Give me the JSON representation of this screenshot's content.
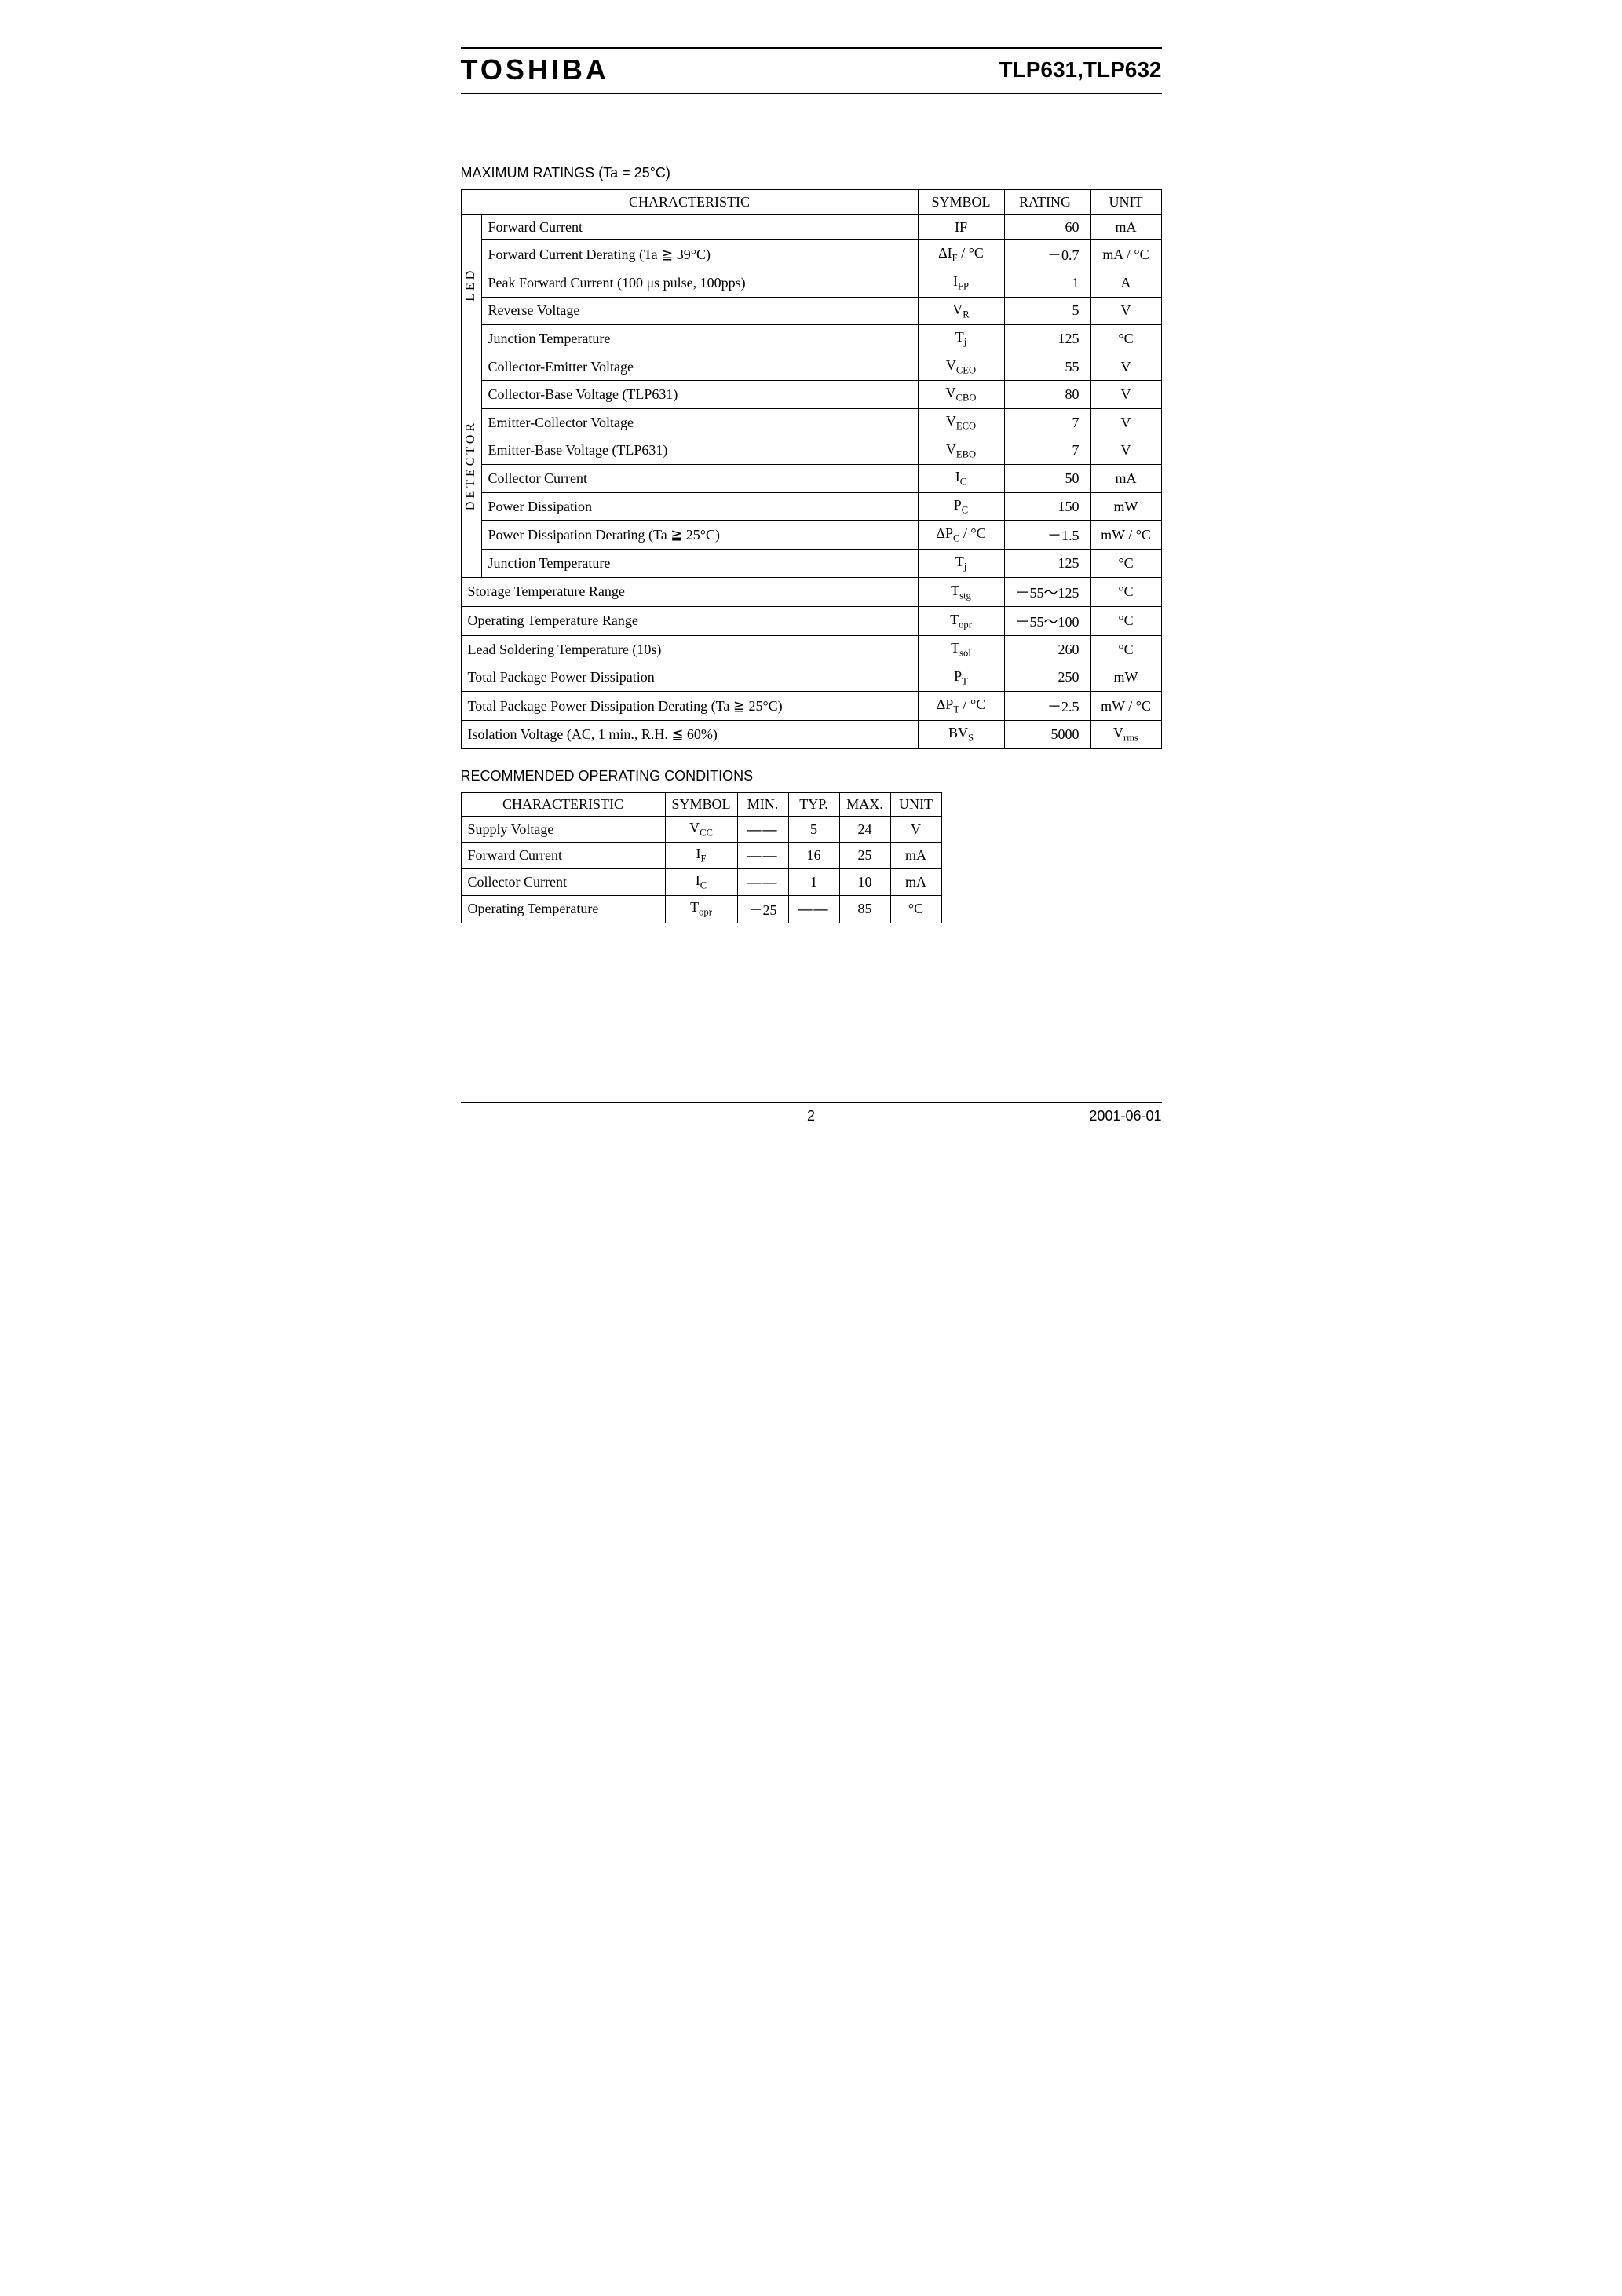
{
  "header": {
    "brand": "TOSHIBA",
    "part": "TLP631,TLP632"
  },
  "section1_title": "MAXIMUM  RATINGS (Ta = 25°C)",
  "table1": {
    "headers": {
      "char": "CHARACTERISTIC",
      "symbol": "SYMBOL",
      "rating": "RATING",
      "unit": "UNIT"
    },
    "groups": [
      {
        "label": "LED",
        "rows": [
          {
            "char": "Forward  Current",
            "sym": "IF",
            "rate": "60",
            "unit": "mA"
          },
          {
            "char": "Forward  Current  Derating (Ta ≧ 39°C)",
            "sym_html": "ΔI<sub>F</sub> / °C",
            "rate": "－0.7",
            "unit": "mA / °C"
          },
          {
            "char": "Peak  Forward  Current (100 μs  pulse,  100pps)",
            "sym_html": "I<sub>FP</sub>",
            "rate": "1",
            "unit": "A"
          },
          {
            "char": "Reverse  Voltage",
            "sym_html": "V<sub>R</sub>",
            "rate": "5",
            "unit": "V"
          },
          {
            "char": "Junction  Temperature",
            "sym_html": "T<sub>j</sub>",
            "rate": "125",
            "unit": "°C"
          }
        ]
      },
      {
        "label": "DETECTOR",
        "rows": [
          {
            "char": "Collector-Emitter  Voltage",
            "sym_html": "V<sub>CEO</sub>",
            "rate": "55",
            "unit": "V"
          },
          {
            "char": "Collector-Base  Voltage  (TLP631)",
            "sym_html": "V<sub>CBO</sub>",
            "rate": "80",
            "unit": "V"
          },
          {
            "char": "Emitter-Collector  Voltage",
            "sym_html": "V<sub>ECO</sub>",
            "rate": "7",
            "unit": "V"
          },
          {
            "char": "Emitter-Base  Voltage  (TLP631)",
            "sym_html": "V<sub>EBO</sub>",
            "rate": "7",
            "unit": "V"
          },
          {
            "char": "Collector  Current",
            "sym_html": "I<sub>C</sub>",
            "rate": "50",
            "unit": "mA"
          },
          {
            "char": "Power  Dissipation",
            "sym_html": "P<sub>C</sub>",
            "rate": "150",
            "unit": "mW"
          },
          {
            "char": "Power  Dissipation  Derating (Ta ≧ 25°C)",
            "sym_html": "ΔP<sub>C</sub> / °C",
            "rate": "－1.5",
            "unit": "mW / °C"
          },
          {
            "char": "Junction  Temperature",
            "sym_html": "T<sub>j</sub>",
            "rate": "125",
            "unit": "°C"
          }
        ]
      }
    ],
    "bottom_rows": [
      {
        "char": "Storage  Temperature  Range",
        "sym_html": "T<sub>stg</sub>",
        "rate": "－55～125",
        "unit": "°C"
      },
      {
        "char": "Operating  Temperature  Range",
        "sym_html": "T<sub>opr</sub>",
        "rate": "－55～100",
        "unit": "°C"
      },
      {
        "char": "Lead  Soldering  Temperature (10s)",
        "sym_html": "T<sub>sol</sub>",
        "rate": "260",
        "unit": "°C"
      },
      {
        "char": "Total  Package  Power  Dissipation",
        "sym_html": "P<sub>T</sub>",
        "rate": "250",
        "unit": "mW"
      },
      {
        "char": "Total  Package  Power  Dissipation  Derating (Ta ≧ 25°C)",
        "sym_html": "ΔP<sub>T</sub> / °C",
        "rate": "－2.5",
        "unit": "mW / °C"
      },
      {
        "char": "Isolation  Voltage (AC,  1  min.,  R.H. ≦ 60%)",
        "sym_html": "BV<sub>S</sub>",
        "rate": "5000",
        "unit_html": "V<sub>rms</sub>"
      }
    ]
  },
  "section2_title": "RECOMMENDED  OPERATING  CONDITIONS",
  "table2": {
    "headers": {
      "char": "CHARACTERISTIC",
      "symbol": "SYMBOL",
      "min": "MIN.",
      "typ": "TYP.",
      "max": "MAX.",
      "unit": "UNIT"
    },
    "rows": [
      {
        "char": "Supply  Voltage",
        "sym_html": "V<sub>CC</sub>",
        "min": "DASH",
        "typ": "5",
        "max": "24",
        "unit": "V"
      },
      {
        "char": "Forward  Current",
        "sym_html": "I<sub>F</sub>",
        "min": "DASH",
        "typ": "16",
        "max": "25",
        "unit": "mA"
      },
      {
        "char": "Collector  Current",
        "sym_html": "I<sub>C</sub>",
        "min": "DASH",
        "typ": "1",
        "max": "10",
        "unit": "mA"
      },
      {
        "char": "Operating  Temperature",
        "sym_html": "T<sub>opr</sub>",
        "min": "－25",
        "typ": "DASH",
        "max": "85",
        "unit": "°C"
      }
    ]
  },
  "footer": {
    "page": "2",
    "date": "2001-06-01"
  },
  "dash_glyph": "――"
}
